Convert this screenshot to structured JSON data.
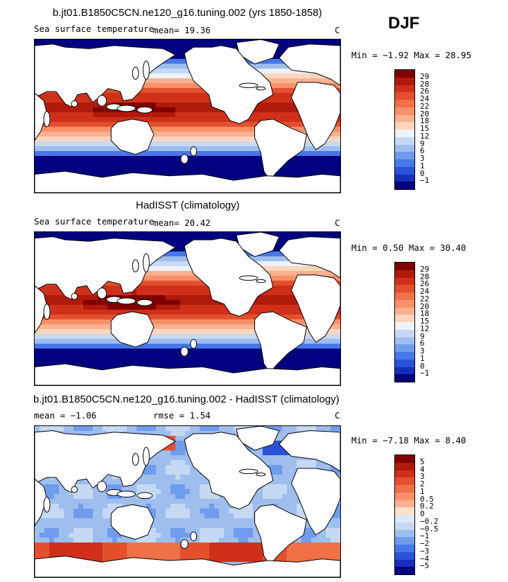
{
  "season": "DJF",
  "panels": [
    {
      "title": "b.jt01.B1850C5CN.ne120_g16.tuning.002 (yrs 1850-1858)",
      "subtitle": "Sea surface temperature",
      "stat1": "mean=  19.36",
      "stat2": "",
      "units": "C",
      "minmax": "Min =  −1.92 Max =  28.95",
      "map": "model"
    },
    {
      "title": "HadISST (climatology)",
      "subtitle": "Sea surface temperature",
      "stat1": "mean=  20.42",
      "stat2": "",
      "units": "C",
      "minmax": "Min =   0.50 Max =  30.40",
      "map": "obs"
    },
    {
      "title": "b.jt01.B1850C5CN.ne120_g16.tuning.002 - HadISST (climatology)",
      "subtitle": "mean =  −1.06",
      "stat1": "",
      "stat2": "rmse =   1.54",
      "units": "C",
      "minmax": "Min =  −7.18 Max =   8.40",
      "map": "diff"
    }
  ],
  "colorbars": {
    "sst": {
      "labels": [
        "29",
        "28",
        "26",
        "24",
        "22",
        "20",
        "18",
        "15",
        "12",
        "9",
        "6",
        "3",
        "1",
        "0",
        "−1"
      ],
      "colors": [
        "#800000",
        "#b01a0a",
        "#d0301a",
        "#e4502e",
        "#f07048",
        "#f89068",
        "#fbb090",
        "#fdd5bd",
        "#eef3f9",
        "#c6d9f2",
        "#9ebeee",
        "#6f9ced",
        "#4878e8",
        "#2a52d8",
        "#1530b8",
        "#000080"
      ]
    },
    "diff": {
      "labels": [
        "5",
        "4",
        "3",
        "2",
        "1",
        "0.5",
        "0.2",
        "0",
        "−0.2",
        "−0.5",
        "−1",
        "−2",
        "−3",
        "−4",
        "−5"
      ],
      "colors": [
        "#800000",
        "#b01a0a",
        "#d0301a",
        "#e4502e",
        "#f07048",
        "#f89068",
        "#fbb090",
        "#fde0cc",
        "#dce9f7",
        "#c6d9f2",
        "#9ebeee",
        "#6f9ced",
        "#4878e8",
        "#2a52d8",
        "#1530b8",
        "#000080"
      ]
    }
  }
}
